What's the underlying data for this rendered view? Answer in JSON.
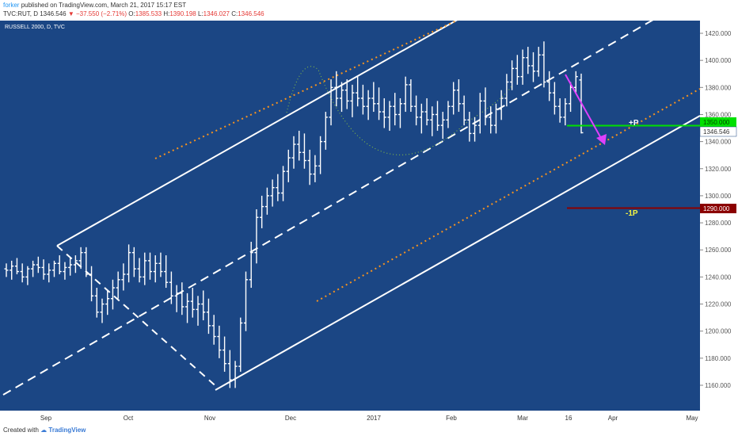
{
  "header": {
    "author": "forker",
    "published": "published on TradingView.com, March 21, 2017 15:17 EST",
    "symbol": "TVC:RUT, D",
    "last": "1346.546",
    "change": "−37.550 (−2.71%)",
    "o_label": "O:",
    "o": "1385.533",
    "h_label": "H:",
    "h": "1390.198",
    "l_label": "L:",
    "l": "1346.027",
    "c_label": "C:",
    "c": "1346.546"
  },
  "legend": "RUSSELL 2000, D, TVC",
  "footer": {
    "created_with": "Created with",
    "brand": "TradingView"
  },
  "colors": {
    "background": "#1b4684",
    "price_bar": "#ffffff",
    "channel": "#ffffff",
    "orange_dotted": "#f7931e",
    "green_curve": "#8dc63f",
    "green_level": "#00e000",
    "red_level": "#8b0000",
    "arrow": "#e040fb",
    "label_yellow": "#f5f542"
  },
  "price_labels": {
    "last_price": "1346.546",
    "green_level": "1350.000",
    "red_level": "1290.000",
    "plus_p": "+P",
    "minus_1p": "-1P"
  },
  "chart_data": {
    "type": "bar",
    "title": "RUSSELL 2000, D, TVC",
    "yticks": [
      "1420.000",
      "1400.000",
      "1380.000",
      "1360.000",
      "1340.000",
      "1320.000",
      "1300.000",
      "1280.000",
      "1260.000",
      "1240.000",
      "1220.000",
      "1200.000",
      "1180.000",
      "1160.000"
    ],
    "ylim": [
      1148,
      1428
    ],
    "xticks": [
      "Sep",
      "Oct",
      "Nov",
      "Dec",
      "2017",
      "Feb",
      "Mar",
      "16",
      "Apr",
      "May"
    ],
    "levels": [
      {
        "name": "+P",
        "value": 1350
      },
      {
        "name": "-1P",
        "value": 1290
      }
    ],
    "ohlc_sample": [
      [
        1246,
        1250,
        1240,
        1245
      ],
      [
        1245,
        1252,
        1238,
        1248
      ],
      [
        1248,
        1254,
        1242,
        1244
      ],
      [
        1244,
        1250,
        1236,
        1240
      ],
      [
        1240,
        1248,
        1234,
        1246
      ],
      [
        1246,
        1252,
        1240,
        1249
      ],
      [
        1249,
        1255,
        1243,
        1247
      ],
      [
        1247,
        1253,
        1238,
        1242
      ],
      [
        1242,
        1250,
        1236,
        1245
      ],
      [
        1245,
        1252,
        1240,
        1250
      ],
      [
        1250,
        1256,
        1242,
        1244
      ],
      [
        1244,
        1251,
        1238,
        1247
      ],
      [
        1247,
        1254,
        1241,
        1249
      ],
      [
        1249,
        1256,
        1243,
        1252
      ],
      [
        1252,
        1262,
        1246,
        1258
      ],
      [
        1258,
        1262,
        1240,
        1242
      ],
      [
        1242,
        1248,
        1222,
        1226
      ],
      [
        1226,
        1232,
        1210,
        1214
      ],
      [
        1214,
        1224,
        1206,
        1220
      ],
      [
        1220,
        1230,
        1212,
        1224
      ],
      [
        1224,
        1238,
        1216,
        1232
      ],
      [
        1232,
        1244,
        1224,
        1238
      ],
      [
        1238,
        1250,
        1230,
        1242
      ],
      [
        1242,
        1264,
        1236,
        1258
      ],
      [
        1258,
        1262,
        1240,
        1246
      ],
      [
        1246,
        1254,
        1236,
        1240
      ],
      [
        1240,
        1258,
        1234,
        1252
      ],
      [
        1252,
        1258,
        1238,
        1244
      ],
      [
        1244,
        1256,
        1236,
        1250
      ],
      [
        1250,
        1258,
        1240,
        1244
      ],
      [
        1244,
        1256,
        1232,
        1236
      ],
      [
        1236,
        1244,
        1220,
        1226
      ],
      [
        1226,
        1234,
        1214,
        1228
      ],
      [
        1228,
        1236,
        1212,
        1218
      ],
      [
        1218,
        1228,
        1206,
        1222
      ],
      [
        1222,
        1232,
        1210,
        1216
      ],
      [
        1216,
        1226,
        1204,
        1220
      ],
      [
        1220,
        1230,
        1208,
        1214
      ],
      [
        1214,
        1224,
        1198,
        1204
      ],
      [
        1204,
        1212,
        1190,
        1196
      ],
      [
        1196,
        1204,
        1180,
        1186
      ],
      [
        1186,
        1196,
        1170,
        1176
      ],
      [
        1176,
        1186,
        1158,
        1164
      ],
      [
        1164,
        1178,
        1158,
        1174
      ],
      [
        1174,
        1210,
        1170,
        1206
      ],
      [
        1206,
        1244,
        1200,
        1238
      ],
      [
        1238,
        1266,
        1232,
        1258
      ],
      [
        1258,
        1290,
        1250,
        1284
      ],
      [
        1284,
        1300,
        1276,
        1292
      ],
      [
        1292,
        1306,
        1286,
        1300
      ],
      [
        1300,
        1312,
        1292,
        1306
      ],
      [
        1306,
        1316,
        1296,
        1302
      ],
      [
        1302,
        1322,
        1296,
        1318
      ],
      [
        1318,
        1334,
        1310,
        1328
      ],
      [
        1328,
        1344,
        1320,
        1338
      ],
      [
        1338,
        1348,
        1326,
        1332
      ],
      [
        1332,
        1346,
        1320,
        1326
      ],
      [
        1326,
        1334,
        1308,
        1316
      ],
      [
        1316,
        1330,
        1310,
        1322
      ],
      [
        1322,
        1344,
        1316,
        1340
      ],
      [
        1340,
        1362,
        1334,
        1358
      ],
      [
        1358,
        1386,
        1352,
        1380
      ],
      [
        1380,
        1392,
        1366,
        1372
      ],
      [
        1372,
        1384,
        1362,
        1378
      ],
      [
        1378,
        1386,
        1364,
        1370
      ],
      [
        1370,
        1382,
        1358,
        1376
      ],
      [
        1376,
        1388,
        1366,
        1372
      ],
      [
        1372,
        1382,
        1360,
        1366
      ],
      [
        1366,
        1378,
        1356,
        1372
      ],
      [
        1372,
        1384,
        1362,
        1368
      ],
      [
        1368,
        1380,
        1356,
        1362
      ],
      [
        1362,
        1372,
        1350,
        1358
      ],
      [
        1358,
        1370,
        1348,
        1366
      ],
      [
        1366,
        1376,
        1352,
        1360
      ],
      [
        1360,
        1372,
        1350,
        1368
      ],
      [
        1368,
        1388,
        1362,
        1382
      ],
      [
        1382,
        1386,
        1362,
        1366
      ],
      [
        1366,
        1374,
        1352,
        1358
      ],
      [
        1358,
        1368,
        1346,
        1362
      ],
      [
        1362,
        1372,
        1352,
        1356
      ],
      [
        1356,
        1366,
        1344,
        1360
      ],
      [
        1360,
        1370,
        1348,
        1352
      ],
      [
        1352,
        1362,
        1342,
        1356
      ],
      [
        1356,
        1370,
        1350,
        1366
      ],
      [
        1366,
        1384,
        1360,
        1378
      ],
      [
        1378,
        1386,
        1362,
        1368
      ],
      [
        1368,
        1374,
        1352,
        1356
      ],
      [
        1356,
        1362,
        1340,
        1346
      ],
      [
        1346,
        1358,
        1340,
        1352
      ],
      [
        1352,
        1376,
        1346,
        1370
      ],
      [
        1370,
        1380,
        1352,
        1358
      ],
      [
        1358,
        1366,
        1346,
        1352
      ],
      [
        1352,
        1368,
        1346,
        1364
      ],
      [
        1364,
        1378,
        1356,
        1372
      ],
      [
        1372,
        1390,
        1366,
        1384
      ],
      [
        1384,
        1400,
        1378,
        1394
      ],
      [
        1394,
        1404,
        1382,
        1388
      ],
      [
        1388,
        1408,
        1382,
        1402
      ],
      [
        1402,
        1410,
        1390,
        1396
      ],
      [
        1396,
        1406,
        1384,
        1392
      ],
      [
        1392,
        1410,
        1388,
        1404
      ],
      [
        1404,
        1414,
        1380,
        1384
      ],
      [
        1384,
        1392,
        1370,
        1376
      ],
      [
        1376,
        1384,
        1360,
        1366
      ],
      [
        1366,
        1372,
        1354,
        1358
      ],
      [
        1358,
        1372,
        1352,
        1368
      ],
      [
        1368,
        1384,
        1362,
        1380
      ],
      [
        1380,
        1392,
        1376,
        1388
      ],
      [
        1385.533,
        1390.198,
        1346.027,
        1346.546
      ]
    ]
  }
}
